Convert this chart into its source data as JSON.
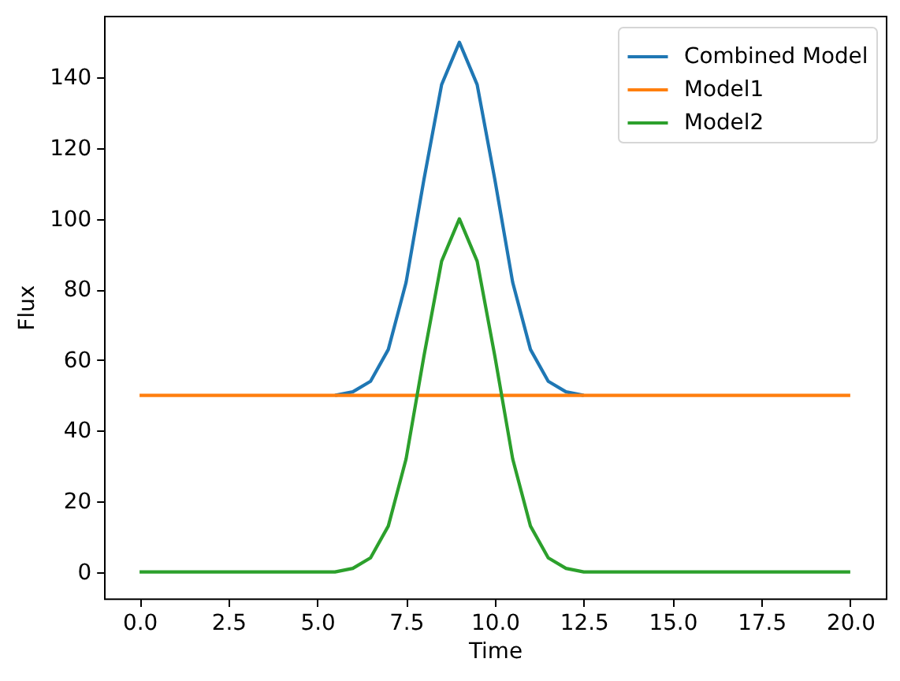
{
  "chart_data": {
    "type": "line",
    "xlabel": "Time",
    "ylabel": "Flux",
    "x": [
      0,
      0.5,
      1,
      1.5,
      2,
      2.5,
      3,
      3.5,
      4,
      4.5,
      5,
      5.5,
      6,
      6.5,
      7,
      7.5,
      8,
      8.5,
      9,
      9.5,
      10,
      10.5,
      11,
      11.5,
      12,
      12.5,
      13,
      13.5,
      14,
      14.5,
      15,
      15.5,
      16,
      16.5,
      17,
      17.5,
      18,
      18.5,
      19,
      19.5,
      20
    ],
    "series": [
      {
        "name": "Combined Model",
        "color": "#1f77b4",
        "values": [
          null,
          null,
          null,
          null,
          null,
          null,
          null,
          null,
          null,
          null,
          null,
          50,
          51,
          54,
          63,
          82,
          111,
          138,
          150,
          138,
          111,
          82,
          63,
          54,
          51,
          50,
          null,
          null,
          null,
          null,
          null,
          null,
          null,
          null,
          null,
          null,
          null,
          null,
          null,
          null,
          null
        ]
      },
      {
        "name": "Model1",
        "color": "#ff7f0e",
        "values": [
          50,
          50,
          50,
          50,
          50,
          50,
          50,
          50,
          50,
          50,
          50,
          50,
          50,
          50,
          50,
          50,
          50,
          50,
          50,
          50,
          50,
          50,
          50,
          50,
          50,
          50,
          50,
          50,
          50,
          50,
          50,
          50,
          50,
          50,
          50,
          50,
          50,
          50,
          50,
          50,
          50
        ]
      },
      {
        "name": "Model2",
        "color": "#2ca02c",
        "values": [
          0,
          0,
          0,
          0,
          0,
          0,
          0,
          0,
          0,
          0,
          0,
          0,
          1,
          4,
          13,
          32,
          61,
          88,
          100,
          88,
          61,
          32,
          13,
          4,
          1,
          0,
          0,
          0,
          0,
          0,
          0,
          0,
          0,
          0,
          0,
          0,
          0,
          0,
          0,
          0,
          0
        ]
      }
    ],
    "xlim": [
      -1,
      21
    ],
    "ylim": [
      -7.5,
      157.5
    ],
    "xticks": [
      {
        "value": 0,
        "label": "0.0"
      },
      {
        "value": 2.5,
        "label": "2.5"
      },
      {
        "value": 5,
        "label": "5.0"
      },
      {
        "value": 7.5,
        "label": "7.5"
      },
      {
        "value": 10,
        "label": "10.0"
      },
      {
        "value": 12.5,
        "label": "12.5"
      },
      {
        "value": 15,
        "label": "15.0"
      },
      {
        "value": 17.5,
        "label": "17.5"
      },
      {
        "value": 20,
        "label": "20.0"
      }
    ],
    "yticks": [
      0,
      20,
      40,
      60,
      80,
      100,
      120,
      140
    ],
    "legend": "top right",
    "line_style": "solid"
  }
}
